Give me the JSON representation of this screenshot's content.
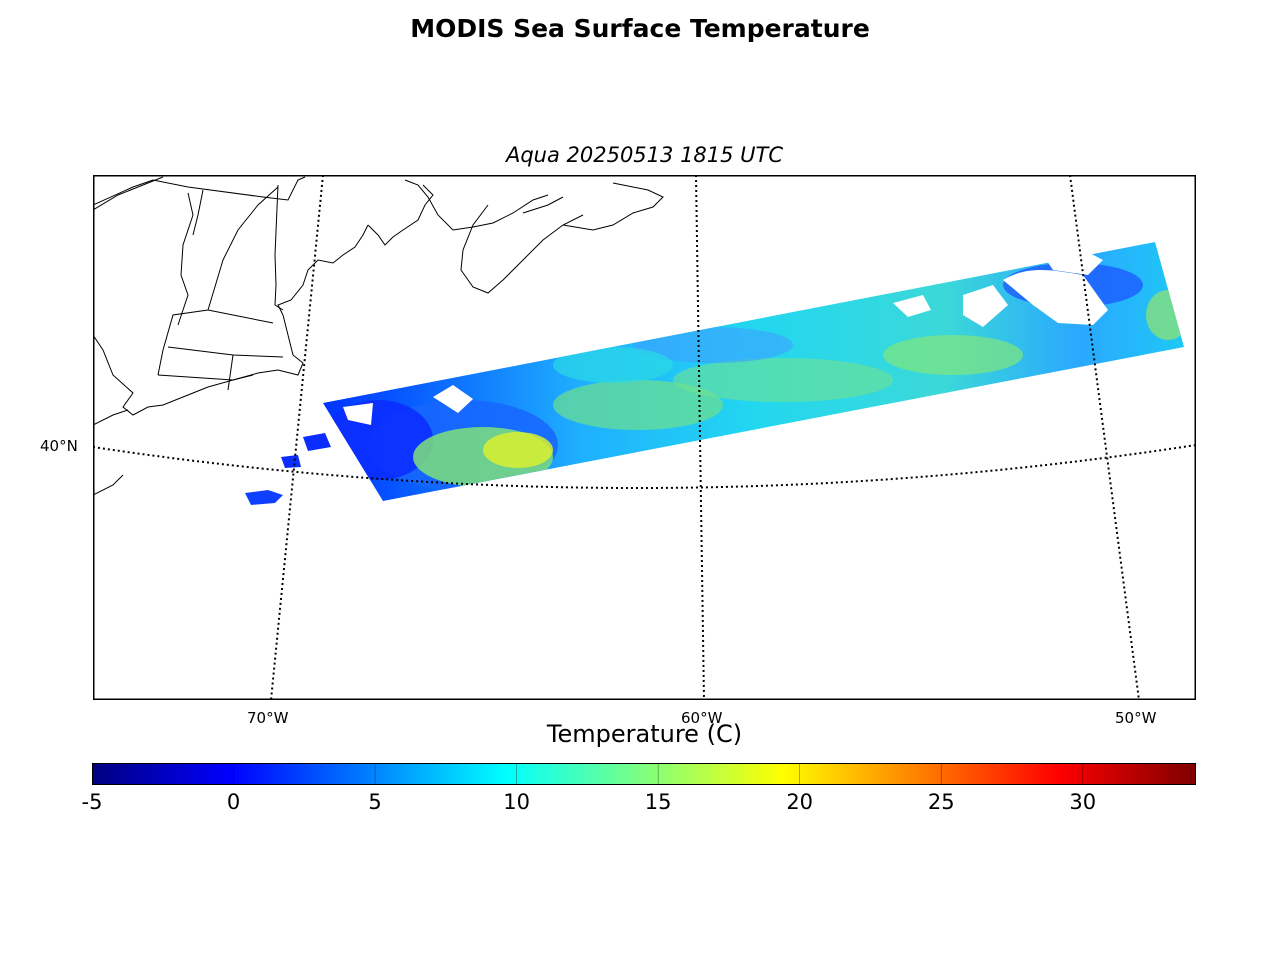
{
  "title": "MODIS Sea Surface Temperature",
  "subtitle": "Aqua 20250513 1815 UTC",
  "map": {
    "latitude_labels": [
      "40°N"
    ],
    "longitude_labels": [
      "70°W",
      "60°W",
      "50°W"
    ],
    "land_color": "#ffffff",
    "coastline_color": "#000000",
    "graticule_style": "dotted"
  },
  "colorbar": {
    "label": "Temperature (C)",
    "colormap": "jet",
    "min": -5,
    "max": 34,
    "tick_values": [
      -5,
      0,
      5,
      10,
      15,
      20,
      25,
      30
    ],
    "tick_labels": [
      "-5",
      "0",
      "5",
      "10",
      "15",
      "20",
      "25",
      "30"
    ],
    "stops": [
      "#00007f",
      "#0000ff",
      "#007fff",
      "#00ffff",
      "#7fff7f",
      "#ffff00",
      "#ff7f00",
      "#ff0000",
      "#7f0000"
    ]
  }
}
